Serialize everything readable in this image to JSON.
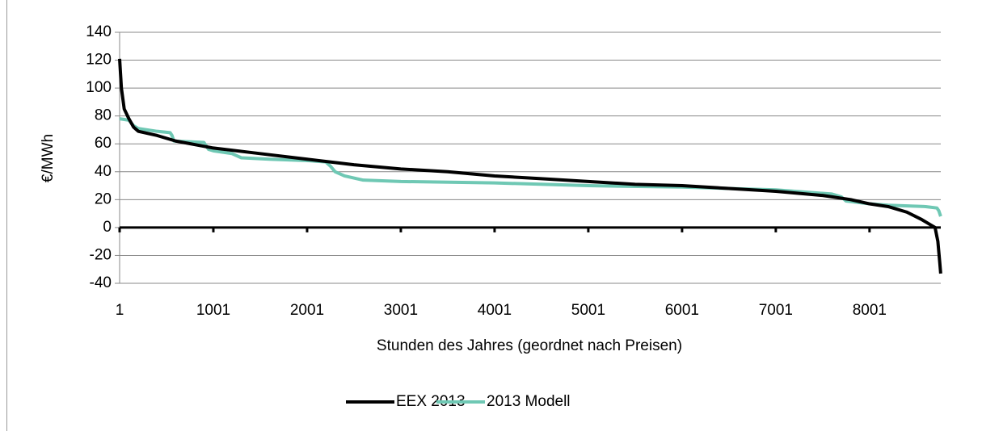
{
  "chart_data": {
    "type": "line",
    "xlabel": "Stunden des Jahres (geordnet nach Preisen)",
    "ylabel": "€/MWh",
    "xlim": [
      1,
      8761
    ],
    "xticks": [
      1,
      1001,
      2001,
      3001,
      4001,
      5001,
      6001,
      7001,
      8001
    ],
    "ylim": [
      -40,
      140
    ],
    "yticks": [
      -40,
      -20,
      0,
      20,
      40,
      60,
      80,
      100,
      120,
      140
    ],
    "grid": true,
    "legend": "bottom",
    "series": [
      {
        "name": "EEX 2013",
        "color": "#000000",
        "x": [
          1,
          20,
          50,
          100,
          150,
          200,
          400,
          600,
          1001,
          1500,
          2001,
          2500,
          3001,
          3500,
          4001,
          4500,
          5001,
          5500,
          6001,
          6500,
          7001,
          7500,
          7800,
          8001,
          8200,
          8400,
          8550,
          8650,
          8700,
          8730,
          8750,
          8760
        ],
        "values": [
          121,
          100,
          85,
          78,
          72,
          69,
          66,
          62,
          57,
          53,
          49,
          45,
          42,
          40,
          37,
          35,
          33,
          31,
          30,
          28,
          26,
          23,
          20,
          17,
          15,
          11,
          6,
          2,
          0,
          -10,
          -25,
          -33
        ]
      },
      {
        "name": "2013 Modell",
        "color": "#6fc8b4",
        "x": [
          1,
          100,
          150,
          200,
          400,
          540,
          560,
          580,
          900,
          950,
          1001,
          1200,
          1300,
          1600,
          2001,
          2200,
          2250,
          2300,
          2400,
          2600,
          3001,
          4001,
          5001,
          6001,
          7001,
          7600,
          7700,
          7750,
          8001,
          8200,
          8600,
          8720,
          8740,
          8760
        ],
        "values": [
          78,
          77,
          73,
          71,
          69,
          68,
          66,
          62,
          61,
          56,
          55,
          53,
          50,
          49,
          48,
          47,
          44,
          40,
          37,
          34,
          33,
          32,
          30,
          29,
          27,
          24,
          22,
          19,
          17,
          16,
          15,
          14,
          12,
          8
        ]
      }
    ]
  }
}
